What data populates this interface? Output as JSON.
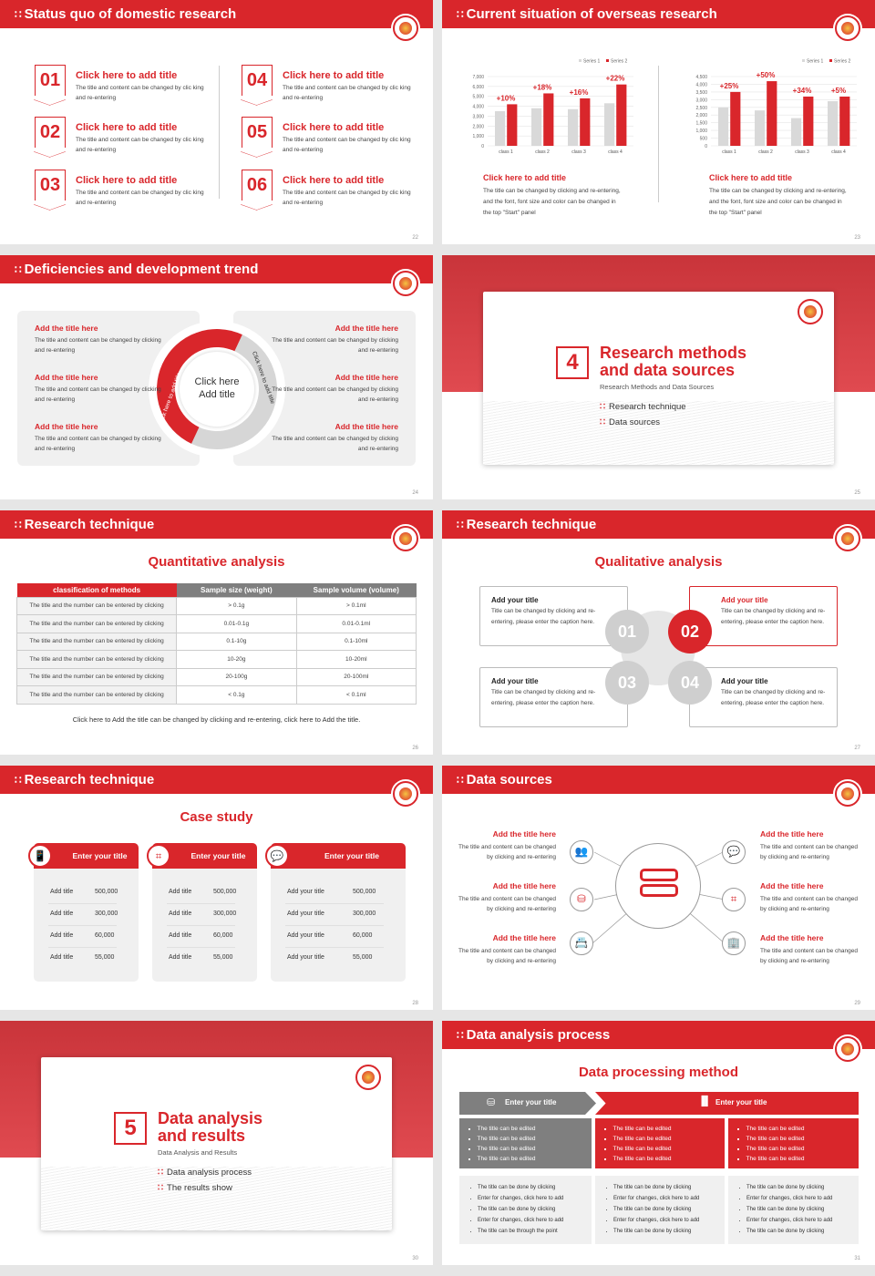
{
  "colors": {
    "accent": "#d9262b",
    "gray": "#7f7f7f",
    "light": "#f0f0f0"
  },
  "s22": {
    "title": "Status quo of domestic research",
    "page": "22",
    "items": [
      {
        "num": "01",
        "title": "Click here to add title",
        "body": "The title and content can be changed by clic king and re-entering"
      },
      {
        "num": "02",
        "title": "Click here to add title",
        "body": "The title and content can be changed by clic king and re-entering"
      },
      {
        "num": "03",
        "title": "Click here to add title",
        "body": "The title and content can be changed by clic king and re-entering"
      },
      {
        "num": "04",
        "title": "Click here to add title",
        "body": "The title and content can be changed by clic king and re-entering"
      },
      {
        "num": "05",
        "title": "Click here to add title",
        "body": "The title and content can be changed by clic king and re-entering"
      },
      {
        "num": "06",
        "title": "Click here to add title",
        "body": "The title and content can be changed by clic king and re-entering"
      }
    ]
  },
  "s23": {
    "title": "Current situation of overseas research",
    "page": "23",
    "blocks": [
      {
        "title": "Click here to add title",
        "body": "The title can be changed by clicking and re-entering, and the font, font size and color can be changed in the top \"Start\" panel"
      },
      {
        "title": "Click here to add title",
        "body": "The title can be changed by clicking and re-entering, and the font, font size and color can be changed in the top \"Start\" panel"
      }
    ]
  },
  "chart_data": [
    {
      "type": "bar",
      "categories": [
        "class 1",
        "class 2",
        "class 3",
        "class 4"
      ],
      "series": [
        {
          "name": "Series 1",
          "values": [
            3500,
            3800,
            3700,
            4300
          ],
          "color": "#d9d9d9"
        },
        {
          "name": "Series 2",
          "values": [
            4200,
            5300,
            4800,
            6200
          ],
          "color": "#d9262b"
        }
      ],
      "annotations": [
        "+10%",
        "+18%",
        "+16%",
        "+22%"
      ],
      "ylim": [
        0,
        7000
      ],
      "yticks": [
        0,
        1000,
        2000,
        3000,
        4000,
        5000,
        6000,
        7000
      ],
      "ytick_labels": [
        "0",
        "1,000",
        "2,000",
        "3,000",
        "4,000",
        "5,000",
        "6,000",
        "7,000"
      ],
      "legend": "top-right",
      "grid": true
    },
    {
      "type": "bar",
      "categories": [
        "class 1",
        "class 2",
        "class 3",
        "class 4"
      ],
      "series": [
        {
          "name": "Series 1",
          "values": [
            2500,
            2300,
            1800,
            2900
          ],
          "color": "#d9d9d9"
        },
        {
          "name": "Series 2",
          "values": [
            3500,
            4200,
            3200,
            3200
          ],
          "color": "#d9262b"
        }
      ],
      "annotations": [
        "+25%",
        "+50%",
        "+34%",
        "+5%"
      ],
      "ylim": [
        0,
        4500
      ],
      "yticks": [
        0,
        500,
        1000,
        1500,
        2000,
        2500,
        3000,
        3500,
        4000,
        4500
      ],
      "ytick_labels": [
        "0",
        "500",
        "1,000",
        "1,500",
        "2,000",
        "2,500",
        "3,000",
        "3,500",
        "4,000",
        "4,500"
      ],
      "legend": "top-right",
      "grid": true
    }
  ],
  "s24": {
    "title": "Deficiencies and development trend",
    "page": "24",
    "center_line1": "Click here",
    "center_line2": "Add title",
    "arrow_left": "Click here to add title",
    "arrow_right": "Click here to add title",
    "left": [
      {
        "title": "Add the title here",
        "body": "The title and content can be changed by clicking and re-entering"
      },
      {
        "title": "Add the title here",
        "body": "The title and content can be changed by clicking and re-entering"
      },
      {
        "title": "Add the title here",
        "body": "The title and content can be changed by clicking and re-entering"
      }
    ],
    "right": [
      {
        "title": "Add the title here",
        "body": "The title and content can be changed by clicking and re-entering"
      },
      {
        "title": "Add the title here",
        "body": "The title and content can be changed by clicking and re-entering"
      },
      {
        "title": "Add the title here",
        "body": "The title and content can be changed by clicking and re-entering"
      }
    ]
  },
  "s25": {
    "num": "4",
    "line1": "Research methods",
    "line2": "and data sources",
    "subtitle": "Research Methods and Data Sources",
    "bullets": [
      "Research technique",
      "Data sources"
    ],
    "page": "25"
  },
  "s26": {
    "title": "Research technique",
    "heading": "Quantitative analysis",
    "page": "26",
    "headers": [
      "classification of methods",
      "Sample size (weight)",
      "Sample volume (volume)"
    ],
    "rows": [
      [
        "The title and the number can be entered by clicking",
        "> 0.1g",
        "> 0.1ml"
      ],
      [
        "The title and the number can be entered by clicking",
        "0.01-0.1g",
        "0.01-0.1ml"
      ],
      [
        "The title and the number can be entered by clicking",
        "0.1-10g",
        "0.1-10ml"
      ],
      [
        "The title and the number can be entered by clicking",
        "10-20g",
        "10-20ml"
      ],
      [
        "The title and the number can be entered by clicking",
        "20-100g",
        "20-100ml"
      ],
      [
        "The title and the number can be entered by clicking",
        "< 0.1g",
        "< 0.1ml"
      ]
    ],
    "footer": "Click here to Add the title can be changed by clicking and re-entering, click here to Add the title."
  },
  "s27": {
    "title": "Research technique",
    "heading": "Qualitative analysis",
    "page": "27",
    "cards": [
      {
        "num": "01",
        "title": "Add your title",
        "body": "Title can be changed by clicking and re-entering, please enter the caption here."
      },
      {
        "num": "02",
        "title": "Add your title",
        "body": "Title can be changed by clicking and re-entering, please enter the caption here."
      },
      {
        "num": "03",
        "title": "Add your title",
        "body": "Title can be changed by clicking and re-entering, please enter the caption here."
      },
      {
        "num": "04",
        "title": "Add your title",
        "body": "Title can be changed by clicking and re-entering, please enter the caption here."
      }
    ]
  },
  "s28": {
    "title": "Research technique",
    "heading": "Case study",
    "page": "28",
    "cards": [
      {
        "title": "Enter your title",
        "icon": "phone-id-icon",
        "rows": [
          [
            "Add title",
            "500,000"
          ],
          [
            "Add title",
            "300,000"
          ],
          [
            "Add title",
            "60,000"
          ],
          [
            "Add title",
            "55,000"
          ]
        ]
      },
      {
        "title": "Enter your title",
        "icon": "qr-scan-icon",
        "rows": [
          [
            "Add title",
            "500,000"
          ],
          [
            "Add title",
            "300,000"
          ],
          [
            "Add title",
            "60,000"
          ],
          [
            "Add title",
            "55,000"
          ]
        ]
      },
      {
        "title": "Enter your title",
        "icon": "chat-icon",
        "rows": [
          [
            "Add your title",
            "500,000"
          ],
          [
            "Add your title",
            "300,000"
          ],
          [
            "Add your title",
            "60,000"
          ],
          [
            "Add your title",
            "55,000"
          ]
        ]
      }
    ]
  },
  "s29": {
    "title": "Data sources",
    "page": "29",
    "left": [
      {
        "title": "Add the title here",
        "body": "The title and content can be changed by clicking and re-entering",
        "icon": "people-icon"
      },
      {
        "title": "Add the title here",
        "body": "The title and content can be changed by clicking and re-entering",
        "icon": "database-icon"
      },
      {
        "title": "Add the title here",
        "body": "The title and content can be changed by clicking and re-entering",
        "icon": "profile-card-icon"
      }
    ],
    "right": [
      {
        "title": "Add the title here",
        "body": "The title and content can be changed by clicking and re-entering",
        "icon": "chat-icon"
      },
      {
        "title": "Add the title here",
        "body": "The title and content can be changed by clicking and re-entering",
        "icon": "qr-scan-icon"
      },
      {
        "title": "Add the title here",
        "body": "The title and content can be changed by clicking and re-entering",
        "icon": "building-icon"
      }
    ]
  },
  "s30": {
    "num": "5",
    "line1": "Data analysis",
    "line2": "and results",
    "subtitle": "Data Analysis and Results",
    "bullets": [
      "Data analysis process",
      "The results show"
    ],
    "page": "30"
  },
  "s31": {
    "title": "Data analysis process",
    "heading": "Data processing method",
    "page": "31",
    "head_left": "Enter your title",
    "head_right": "Enter your title",
    "top": [
      [
        "The title can be edited",
        "The title can be edited",
        "The title can be edited",
        "The title can be edited"
      ],
      [
        "The title can be edited",
        "The title can be edited",
        "The title can be edited",
        "The title can be edited"
      ],
      [
        "The title can be edited",
        "The title can be edited",
        "The title can be edited",
        "The title can be edited"
      ]
    ],
    "bottom": [
      [
        "The title can be done by clicking",
        "Enter for changes, click here to add",
        "The title can be done by clicking",
        "Enter for changes, click here to add",
        "The title can be through the point"
      ],
      [
        "The title can be done by clicking",
        "Enter for changes, click here to add",
        "The title can be done by clicking",
        "Enter for changes, click here to add",
        "The title can be done by clicking"
      ],
      [
        "The title can be done by clicking",
        "Enter for changes, click here to add",
        "The title can be done by clicking",
        "Enter for changes, click here to add",
        "The title can be done by clicking"
      ]
    ]
  }
}
